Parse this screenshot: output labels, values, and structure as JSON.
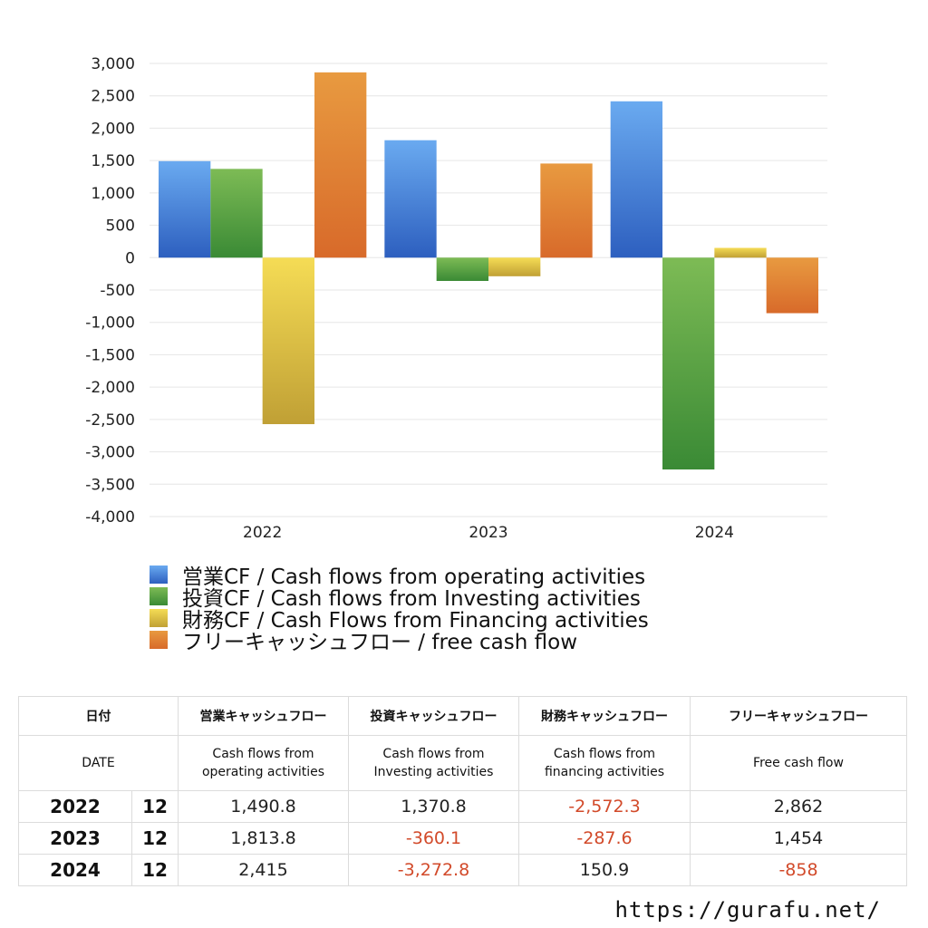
{
  "chart_data": {
    "type": "bar",
    "categories": [
      "2022",
      "2023",
      "2024"
    ],
    "series": [
      {
        "name": "営業CF / Cash flows from operating activities",
        "values": [
          1490.8,
          1813.8,
          2415
        ],
        "color_top": "#6aaaf0",
        "color_bottom": "#2d5fbf"
      },
      {
        "name": "投資CF / Cash flows from Investing activities",
        "values": [
          1370.8,
          -360.1,
          -3272.8
        ],
        "color_top": "#7dbb55",
        "color_bottom": "#3a8a35"
      },
      {
        "name": "財務CF / Cash Flows from Financing activities",
        "values": [
          -2572.3,
          -287.6,
          150.9
        ],
        "color_top": "#f5dc55",
        "color_bottom": "#c0a035"
      },
      {
        "name": "フリーキャッシュフロー / free cash flow",
        "values": [
          2862,
          1454,
          -858
        ],
        "color_top": "#e89a40",
        "color_bottom": "#d86a2a"
      }
    ],
    "ylim": [
      -4000,
      3000
    ],
    "yticks": [
      3000,
      2500,
      2000,
      1500,
      1000,
      500,
      0,
      -500,
      -1000,
      -1500,
      -2000,
      -2500,
      -3000,
      -3500,
      -4000
    ],
    "ytick_labels": [
      "3,000",
      "2,500",
      "2,000",
      "1,500",
      "1,000",
      "500",
      "0",
      "-500",
      "-1,000",
      "-1,500",
      "-2,000",
      "-2,500",
      "-3,000",
      "-3,500",
      "-4,000"
    ],
    "grid": true,
    "legend_position": "bottom"
  },
  "table": {
    "header_jp": {
      "date": "日付",
      "operating": "営業キャッシュフロー",
      "investing": "投資キャッシュフロー",
      "financing": "財務キャッシュフロー",
      "free": "フリーキャッシュフロー"
    },
    "header_en": {
      "date": "DATE",
      "operating_1": "Cash flows from",
      "operating_2": "operating activities",
      "investing_1": "Cash flows from",
      "investing_2": "Investing activities",
      "financing_1": "Cash flows from",
      "financing_2": "financing activities",
      "free": "Free cash flow"
    },
    "rows": [
      {
        "year": "2022",
        "month": "12",
        "operating": "1,490.8",
        "investing": "1,370.8",
        "financing": "-2,572.3",
        "free": "2,862"
      },
      {
        "year": "2023",
        "month": "12",
        "operating": "1,813.8",
        "investing": "-360.1",
        "financing": "-287.6",
        "free": "1,454"
      },
      {
        "year": "2024",
        "month": "12",
        "operating": "2,415",
        "investing": "-3,272.8",
        "financing": "150.9",
        "free": "-858"
      }
    ],
    "negative_color": "#d24a2a"
  },
  "site_url": "https://gurafu.net/"
}
